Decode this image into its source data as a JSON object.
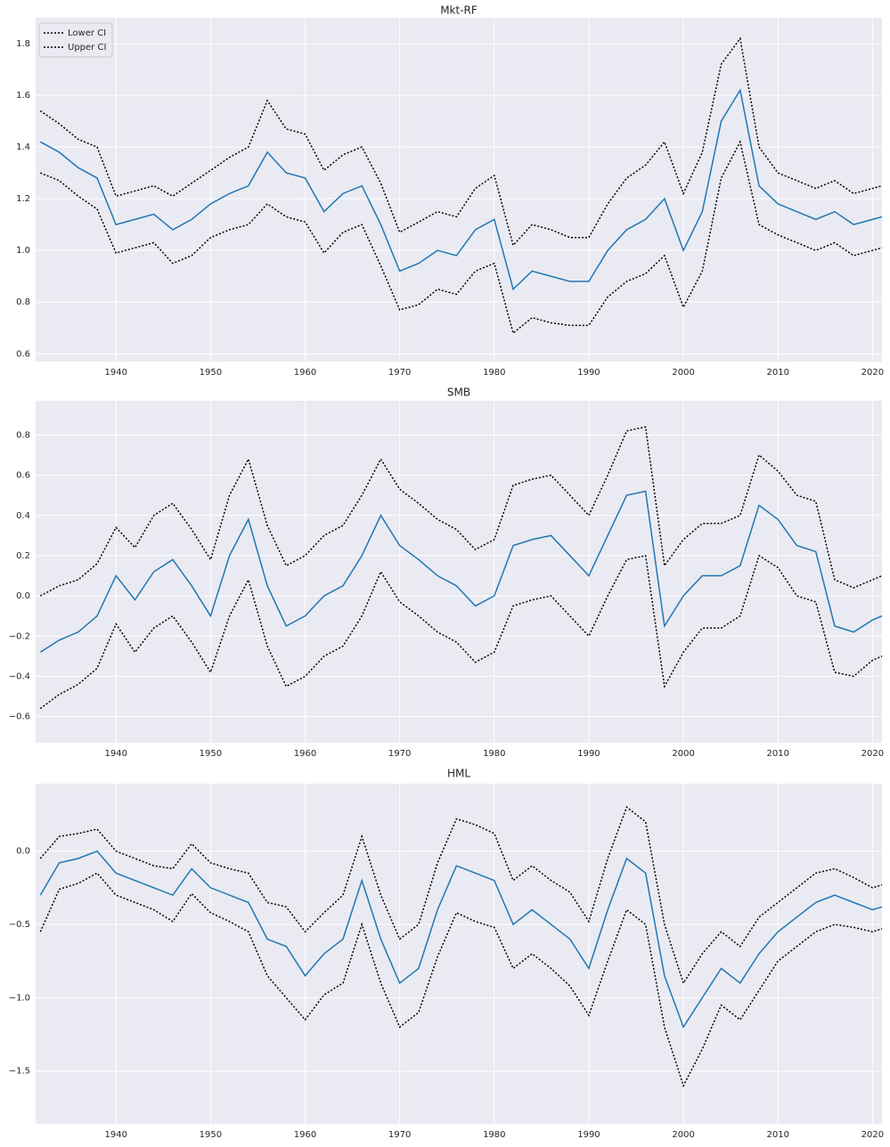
{
  "chart_data": [
    {
      "type": "line",
      "title": "Mkt-RF",
      "grid": true,
      "legend": "upper left",
      "x": [
        1932,
        1934,
        1936,
        1938,
        1940,
        1942,
        1944,
        1946,
        1948,
        1950,
        1952,
        1954,
        1956,
        1958,
        1960,
        1962,
        1964,
        1966,
        1968,
        1970,
        1972,
        1974,
        1976,
        1978,
        1980,
        1982,
        1984,
        1986,
        1988,
        1990,
        1992,
        1994,
        1996,
        1998,
        2000,
        2002,
        2004,
        2006,
        2008,
        2010,
        2012,
        2014,
        2016,
        2018,
        2020,
        2021
      ],
      "xlim": [
        1931.5,
        2021
      ],
      "xticks": [
        1940,
        1950,
        1960,
        1970,
        1980,
        1990,
        2000,
        2010,
        2020
      ],
      "ylim": [
        0.57,
        1.9
      ],
      "yticks": [
        0.6,
        0.8,
        {
          "value": 1,
          "label": "1.0"
        },
        1.2,
        1.4,
        1.6,
        1.8
      ],
      "series": [
        {
          "color": "#1f77b4",
          "style": "solid",
          "values": [
            1.42,
            1.38,
            1.32,
            1.28,
            1.1,
            1.12,
            1.14,
            1.08,
            1.12,
            1.18,
            1.22,
            1.25,
            1.38,
            1.3,
            1.28,
            1.15,
            1.22,
            1.25,
            1.1,
            0.92,
            0.95,
            1.0,
            0.98,
            1.08,
            1.12,
            0.85,
            0.92,
            0.9,
            0.88,
            0.88,
            1.0,
            1.08,
            1.12,
            1.2,
            1.0,
            1.15,
            1.5,
            1.62,
            1.25,
            1.18,
            1.15,
            1.12,
            1.15,
            1.1,
            1.12,
            1.13
          ]
        },
        {
          "name": "Lower CI",
          "color": "#000000",
          "style": "dotted",
          "values": [
            1.3,
            1.27,
            1.21,
            1.16,
            0.99,
            1.01,
            1.03,
            0.95,
            0.98,
            1.05,
            1.08,
            1.1,
            1.18,
            1.13,
            1.11,
            0.99,
            1.07,
            1.1,
            0.94,
            0.77,
            0.79,
            0.85,
            0.83,
            0.92,
            0.95,
            0.68,
            0.74,
            0.72,
            0.71,
            0.71,
            0.82,
            0.88,
            0.91,
            0.98,
            0.78,
            0.92,
            1.28,
            1.42,
            1.1,
            1.06,
            1.03,
            1.0,
            1.03,
            0.98,
            1.0,
            1.01
          ]
        },
        {
          "name": "Upper CI",
          "color": "#000000",
          "style": "dotted",
          "values": [
            1.54,
            1.49,
            1.43,
            1.4,
            1.21,
            1.23,
            1.25,
            1.21,
            1.26,
            1.31,
            1.36,
            1.4,
            1.58,
            1.47,
            1.45,
            1.31,
            1.37,
            1.4,
            1.26,
            1.07,
            1.11,
            1.15,
            1.13,
            1.24,
            1.29,
            1.02,
            1.1,
            1.08,
            1.05,
            1.05,
            1.18,
            1.28,
            1.33,
            1.42,
            1.22,
            1.38,
            1.72,
            1.82,
            1.4,
            1.3,
            1.27,
            1.24,
            1.27,
            1.22,
            1.24,
            1.25
          ]
        }
      ]
    },
    {
      "type": "line",
      "title": "SMB",
      "grid": true,
      "x": [
        1932,
        1934,
        1936,
        1938,
        1940,
        1942,
        1944,
        1946,
        1948,
        1950,
        1952,
        1954,
        1956,
        1958,
        1960,
        1962,
        1964,
        1966,
        1968,
        1970,
        1972,
        1974,
        1976,
        1978,
        1980,
        1982,
        1984,
        1986,
        1988,
        1990,
        1992,
        1994,
        1996,
        1998,
        2000,
        2002,
        2004,
        2006,
        2008,
        2010,
        2012,
        2014,
        2016,
        2018,
        2020,
        2021
      ],
      "xlim": [
        1931.5,
        2021
      ],
      "xticks": [
        1940,
        1950,
        1960,
        1970,
        1980,
        1990,
        2000,
        2010,
        2020
      ],
      "ylim": [
        -0.73,
        0.97
      ],
      "yticks": [
        {
          "value": -0.6,
          "label": "−0.6"
        },
        {
          "value": -0.4,
          "label": "−0.4"
        },
        {
          "value": -0.2,
          "label": "−0.2"
        },
        {
          "value": 0,
          "label": "0.0"
        },
        0.2,
        0.4,
        0.6,
        0.8
      ],
      "series": [
        {
          "color": "#1f77b4",
          "style": "solid",
          "values": [
            -0.28,
            -0.22,
            -0.18,
            -0.1,
            0.1,
            -0.02,
            0.12,
            0.18,
            0.05,
            -0.1,
            0.2,
            0.38,
            0.05,
            -0.15,
            -0.1,
            0.0,
            0.05,
            0.2,
            0.4,
            0.25,
            0.18,
            0.1,
            0.05,
            -0.05,
            0.0,
            0.25,
            0.28,
            0.3,
            0.2,
            0.1,
            0.3,
            0.5,
            0.52,
            -0.15,
            0.0,
            0.1,
            0.1,
            0.15,
            0.45,
            0.38,
            0.25,
            0.22,
            -0.15,
            -0.18,
            -0.12,
            -0.1
          ]
        },
        {
          "name": "Lower CI",
          "color": "#000000",
          "style": "dotted",
          "values": [
            -0.56,
            -0.49,
            -0.44,
            -0.36,
            -0.14,
            -0.28,
            -0.16,
            -0.1,
            -0.23,
            -0.38,
            -0.1,
            0.08,
            -0.25,
            -0.45,
            -0.4,
            -0.3,
            -0.25,
            -0.1,
            0.12,
            -0.03,
            -0.1,
            -0.18,
            -0.23,
            -0.33,
            -0.28,
            -0.05,
            -0.02,
            0.0,
            -0.1,
            -0.2,
            0.0,
            0.18,
            0.2,
            -0.45,
            -0.28,
            -0.16,
            -0.16,
            -0.1,
            0.2,
            0.14,
            0.0,
            -0.03,
            -0.38,
            -0.4,
            -0.32,
            -0.3
          ]
        },
        {
          "name": "Upper CI",
          "color": "#000000",
          "style": "dotted",
          "values": [
            0.0,
            0.05,
            0.08,
            0.16,
            0.34,
            0.24,
            0.4,
            0.46,
            0.33,
            0.18,
            0.5,
            0.68,
            0.35,
            0.15,
            0.2,
            0.3,
            0.35,
            0.5,
            0.68,
            0.53,
            0.46,
            0.38,
            0.33,
            0.23,
            0.28,
            0.55,
            0.58,
            0.6,
            0.5,
            0.4,
            0.6,
            0.82,
            0.84,
            0.15,
            0.28,
            0.36,
            0.36,
            0.4,
            0.7,
            0.62,
            0.5,
            0.47,
            0.08,
            0.04,
            0.08,
            0.1
          ]
        }
      ]
    },
    {
      "type": "line",
      "title": "HML",
      "grid": true,
      "x": [
        1932,
        1934,
        1936,
        1938,
        1940,
        1942,
        1944,
        1946,
        1948,
        1950,
        1952,
        1954,
        1956,
        1958,
        1960,
        1962,
        1964,
        1966,
        1968,
        1970,
        1972,
        1974,
        1976,
        1978,
        1980,
        1982,
        1984,
        1986,
        1988,
        1990,
        1992,
        1994,
        1996,
        1998,
        2000,
        2002,
        2004,
        2006,
        2008,
        2010,
        2012,
        2014,
        2016,
        2018,
        2020,
        2021
      ],
      "xlim": [
        1931.5,
        2021
      ],
      "xticks": [
        1940,
        1950,
        1960,
        1970,
        1980,
        1990,
        2000,
        2010,
        2020
      ],
      "ylim": [
        -1.86,
        0.46
      ],
      "yticks": [
        {
          "value": -1.5,
          "label": "−1.5"
        },
        {
          "value": -1,
          "label": "−1.0"
        },
        {
          "value": -0.5,
          "label": "−0.5"
        },
        {
          "value": 0,
          "label": "0.0"
        }
      ],
      "series": [
        {
          "color": "#1f77b4",
          "style": "solid",
          "values": [
            -0.3,
            -0.08,
            -0.05,
            0.0,
            -0.15,
            -0.2,
            -0.25,
            -0.3,
            -0.12,
            -0.25,
            -0.3,
            -0.35,
            -0.6,
            -0.65,
            -0.85,
            -0.7,
            -0.6,
            -0.2,
            -0.6,
            -0.9,
            -0.8,
            -0.4,
            -0.1,
            -0.15,
            -0.2,
            -0.5,
            -0.4,
            -0.5,
            -0.6,
            -0.8,
            -0.4,
            -0.05,
            -0.15,
            -0.85,
            -1.2,
            -1.0,
            -0.8,
            -0.9,
            -0.7,
            -0.55,
            -0.45,
            -0.35,
            -0.3,
            -0.35,
            -0.4,
            -0.38
          ]
        },
        {
          "name": "Lower CI",
          "color": "#000000",
          "style": "dotted",
          "values": [
            -0.55,
            -0.26,
            -0.22,
            -0.15,
            -0.3,
            -0.35,
            -0.4,
            -0.48,
            -0.29,
            -0.42,
            -0.48,
            -0.55,
            -0.85,
            -1.0,
            -1.15,
            -0.98,
            -0.9,
            -0.5,
            -0.9,
            -1.2,
            -1.1,
            -0.72,
            -0.42,
            -0.48,
            -0.52,
            -0.8,
            -0.7,
            -0.8,
            -0.92,
            -1.12,
            -0.75,
            -0.4,
            -0.5,
            -1.2,
            -1.6,
            -1.35,
            -1.05,
            -1.15,
            -0.95,
            -0.75,
            -0.65,
            -0.55,
            -0.5,
            -0.52,
            -0.55,
            -0.53
          ]
        },
        {
          "name": "Upper CI",
          "color": "#000000",
          "style": "dotted",
          "values": [
            -0.05,
            0.1,
            0.12,
            0.15,
            0.0,
            -0.05,
            -0.1,
            -0.12,
            0.05,
            -0.08,
            -0.12,
            -0.15,
            -0.35,
            -0.38,
            -0.55,
            -0.42,
            -0.3,
            0.1,
            -0.3,
            -0.6,
            -0.5,
            -0.08,
            0.22,
            0.18,
            0.12,
            -0.2,
            -0.1,
            -0.2,
            -0.28,
            -0.48,
            -0.05,
            0.3,
            0.2,
            -0.5,
            -0.9,
            -0.7,
            -0.55,
            -0.65,
            -0.45,
            -0.35,
            -0.25,
            -0.15,
            -0.12,
            -0.18,
            -0.25,
            -0.23
          ]
        }
      ]
    }
  ]
}
